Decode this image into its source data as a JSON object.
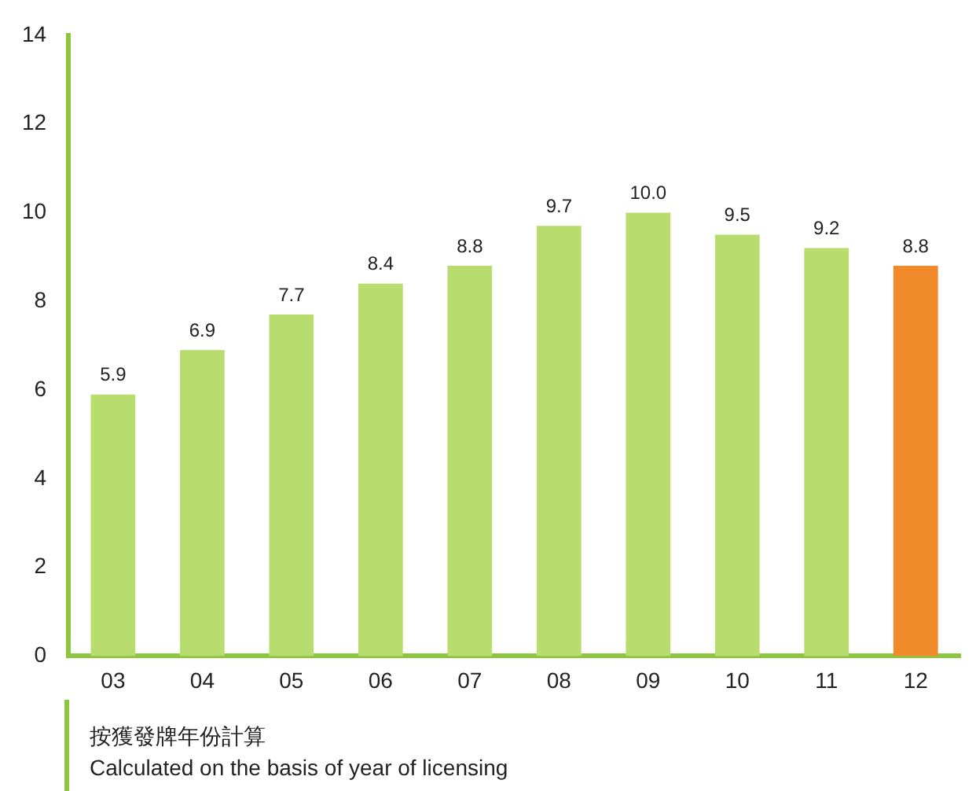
{
  "chart_data": {
    "type": "bar",
    "categories": [
      "03",
      "04",
      "05",
      "06",
      "07",
      "08",
      "09",
      "10",
      "11",
      "12"
    ],
    "values": [
      5.9,
      6.9,
      7.7,
      8.4,
      8.8,
      9.7,
      10.0,
      9.5,
      9.2,
      8.8
    ],
    "value_labels": [
      "5.9",
      "6.9",
      "7.7",
      "8.4",
      "8.8",
      "9.7",
      "10.0",
      "9.5",
      "9.2",
      "8.8"
    ],
    "colors": [
      "#b8dc6e",
      "#b8dc6e",
      "#b8dc6e",
      "#b8dc6e",
      "#b8dc6e",
      "#b8dc6e",
      "#b8dc6e",
      "#b8dc6e",
      "#b8dc6e",
      "#f08a2a"
    ],
    "ylim": [
      0,
      14
    ],
    "yticks": [
      0,
      2,
      4,
      6,
      8,
      10,
      12,
      14
    ],
    "grid": false,
    "legend": false,
    "annotations": [
      "按獲發牌年份計算",
      "Calculated on the basis of year of licensing"
    ]
  }
}
